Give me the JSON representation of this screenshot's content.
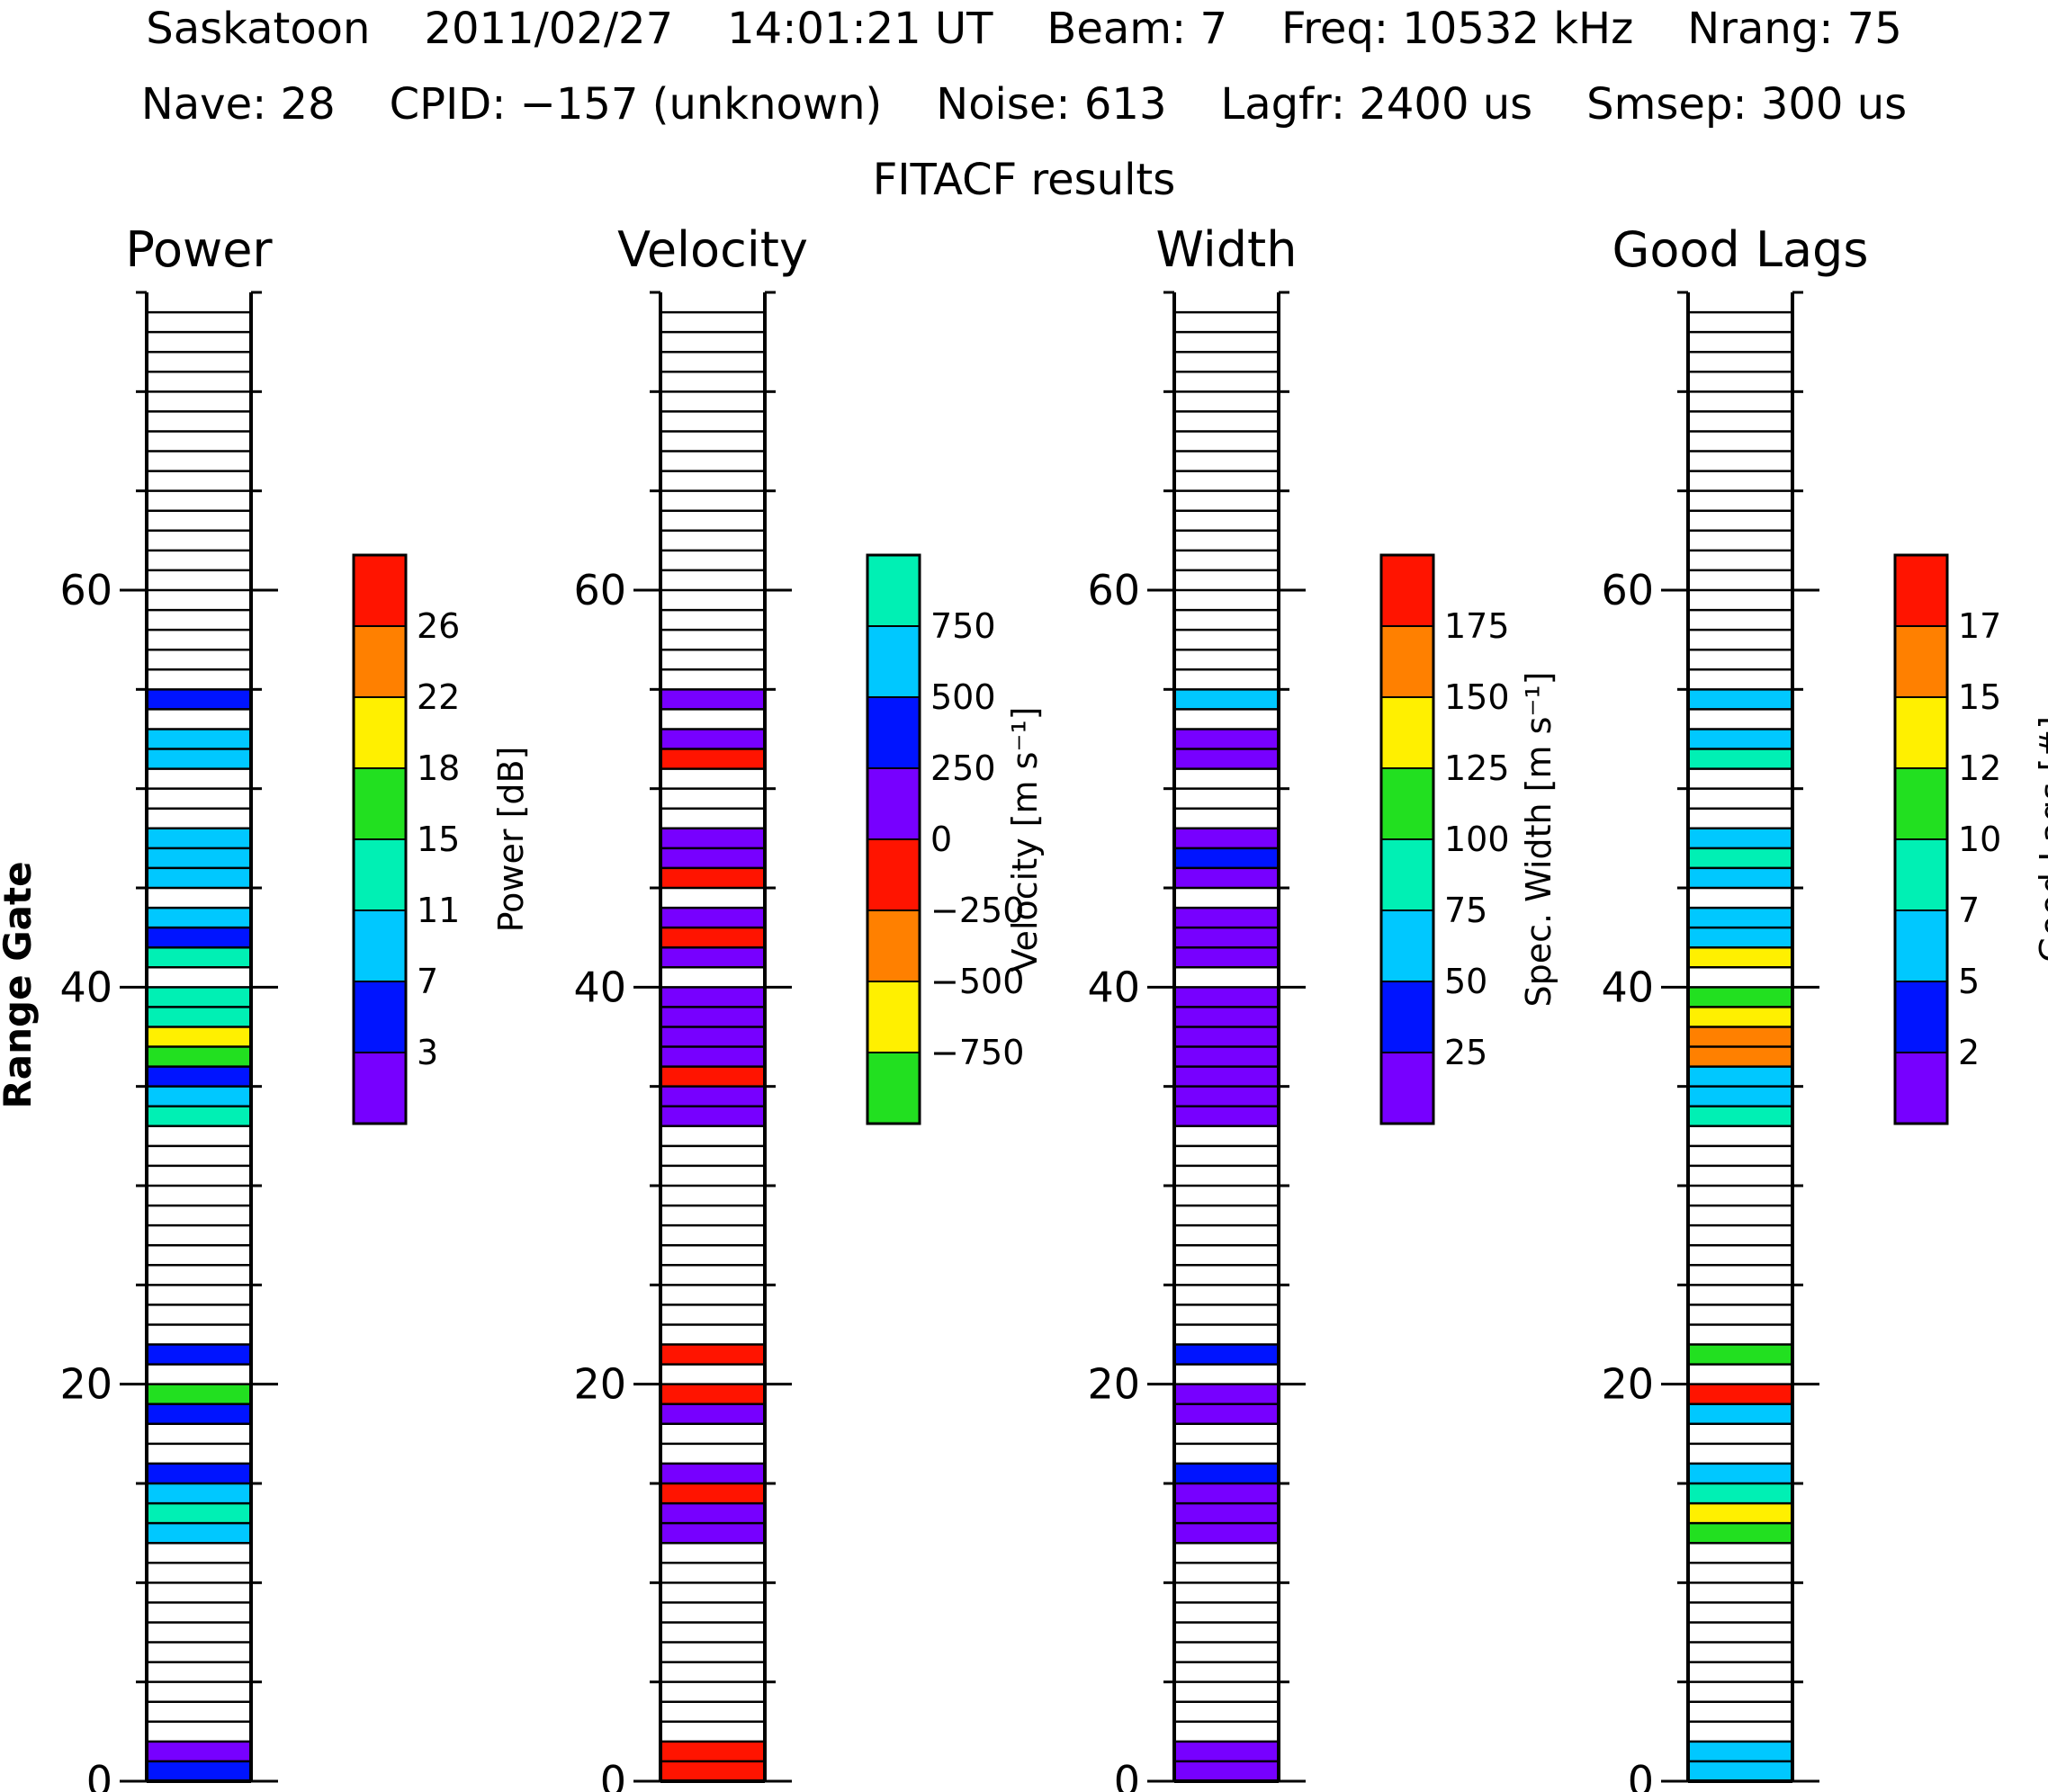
{
  "header": {
    "station": "Saskatoon",
    "date": "2011/02/27",
    "time": "14:01:21 UT",
    "beam": "Beam: 7",
    "freq": "Freq: 10532 kHz",
    "nrang": "Nrang: 75",
    "nave": "Nave: 28",
    "cpid": "CPID: −157 (unknown)",
    "noise": "Noise: 613",
    "lagfr": "Lagfr: 2400 us",
    "smsep": "Smsep: 300 us",
    "subtitle": "FITACF results"
  },
  "chart_data": {
    "type": "range-gate-strip",
    "ylabel": "Range Gate",
    "yrange": [
      0,
      75
    ],
    "yticks": [
      0,
      20,
      40,
      60
    ],
    "gates": 75,
    "palette": [
      "#7700ff",
      "#0014ff",
      "#00c8ff",
      "#00f0b4",
      "#22e020",
      "#fff000",
      "#ff8000",
      "#ff1400"
    ],
    "panels": [
      {
        "title": "Power",
        "bar_label": "Power [dB]",
        "bar_colors": [
          "#7700ff",
          "#0014ff",
          "#00c8ff",
          "#00f0b4",
          "#22e020",
          "#fff000",
          "#ff8000",
          "#ff1400"
        ],
        "bar_ticks": [
          "3",
          "7",
          "11",
          "15",
          "18",
          "22",
          "26"
        ],
        "gates": [
          [
            0,
            1
          ],
          [
            1,
            0
          ],
          [
            12,
            2
          ],
          [
            13,
            3
          ],
          [
            14,
            2
          ],
          [
            15,
            1
          ],
          [
            18,
            1
          ],
          [
            19,
            4
          ],
          [
            21,
            1
          ],
          [
            33,
            3
          ],
          [
            34,
            2
          ],
          [
            35,
            1
          ],
          [
            36,
            4
          ],
          [
            37,
            5
          ],
          [
            38,
            3
          ],
          [
            39,
            3
          ],
          [
            41,
            3
          ],
          [
            42,
            1
          ],
          [
            43,
            2
          ],
          [
            45,
            2
          ],
          [
            46,
            2
          ],
          [
            47,
            2
          ],
          [
            51,
            2
          ],
          [
            52,
            2
          ],
          [
            54,
            1
          ]
        ]
      },
      {
        "title": "Velocity",
        "bar_label": "Velocity [m s⁻¹]",
        "bar_colors": [
          "#22e020",
          "#fff000",
          "#ff8000",
          "#ff1400",
          "#7700ff",
          "#0014ff",
          "#00c8ff",
          "#00f0b4"
        ],
        "bar_ticks": [
          "−750",
          "−500",
          "−250",
          "0",
          "250",
          "500",
          "750"
        ],
        "gates": [
          [
            0,
            3
          ],
          [
            1,
            3
          ],
          [
            12,
            4
          ],
          [
            13,
            4
          ],
          [
            14,
            3
          ],
          [
            15,
            4
          ],
          [
            18,
            4
          ],
          [
            19,
            3
          ],
          [
            21,
            3
          ],
          [
            33,
            4
          ],
          [
            34,
            4
          ],
          [
            35,
            3
          ],
          [
            36,
            4
          ],
          [
            37,
            4
          ],
          [
            38,
            4
          ],
          [
            39,
            4
          ],
          [
            41,
            4
          ],
          [
            42,
            3
          ],
          [
            43,
            4
          ],
          [
            45,
            3
          ],
          [
            46,
            4
          ],
          [
            47,
            4
          ],
          [
            51,
            3
          ],
          [
            52,
            4
          ],
          [
            54,
            4
          ]
        ]
      },
      {
        "title": "Width",
        "bar_label": "Spec. Width [m s⁻¹]",
        "bar_colors": [
          "#7700ff",
          "#0014ff",
          "#00c8ff",
          "#00f0b4",
          "#22e020",
          "#fff000",
          "#ff8000",
          "#ff1400"
        ],
        "bar_ticks": [
          "25",
          "50",
          "75",
          "100",
          "125",
          "150",
          "175"
        ],
        "gates": [
          [
            0,
            0
          ],
          [
            1,
            0
          ],
          [
            12,
            0
          ],
          [
            13,
            0
          ],
          [
            14,
            0
          ],
          [
            15,
            1
          ],
          [
            18,
            0
          ],
          [
            19,
            0
          ],
          [
            21,
            1
          ],
          [
            33,
            0
          ],
          [
            34,
            0
          ],
          [
            35,
            0
          ],
          [
            36,
            0
          ],
          [
            37,
            0
          ],
          [
            38,
            0
          ],
          [
            39,
            0
          ],
          [
            41,
            0
          ],
          [
            42,
            0
          ],
          [
            43,
            0
          ],
          [
            45,
            0
          ],
          [
            46,
            1
          ],
          [
            47,
            0
          ],
          [
            51,
            0
          ],
          [
            52,
            0
          ],
          [
            54,
            2
          ]
        ]
      },
      {
        "title": "Good Lags",
        "bar_label": "Good Lags [#]",
        "bar_colors": [
          "#7700ff",
          "#0014ff",
          "#00c8ff",
          "#00f0b4",
          "#22e020",
          "#fff000",
          "#ff8000",
          "#ff1400"
        ],
        "bar_ticks": [
          "2",
          "5",
          "7",
          "10",
          "12",
          "15",
          "17"
        ],
        "gates": [
          [
            0,
            2
          ],
          [
            1,
            2
          ],
          [
            12,
            4
          ],
          [
            13,
            5
          ],
          [
            14,
            3
          ],
          [
            15,
            2
          ],
          [
            18,
            2
          ],
          [
            19,
            7
          ],
          [
            21,
            4
          ],
          [
            33,
            3
          ],
          [
            34,
            2
          ],
          [
            35,
            2
          ],
          [
            36,
            6
          ],
          [
            37,
            6
          ],
          [
            38,
            5
          ],
          [
            39,
            4
          ],
          [
            41,
            5
          ],
          [
            42,
            2
          ],
          [
            43,
            2
          ],
          [
            45,
            2
          ],
          [
            46,
            3
          ],
          [
            47,
            2
          ],
          [
            51,
            3
          ],
          [
            52,
            2
          ],
          [
            54,
            2
          ]
        ]
      }
    ]
  }
}
